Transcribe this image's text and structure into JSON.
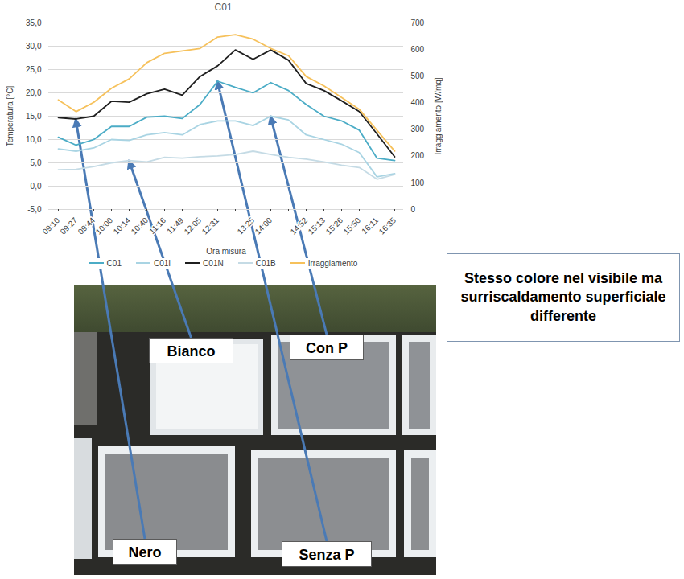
{
  "chart_data": {
    "type": "line",
    "title": "C01",
    "xlabel": "Ora misura",
    "ylabel": "Temperatura [°C]",
    "y2label": "Irraggiamento [W/mq]",
    "categories": [
      "09:10",
      "09:27",
      "09:44",
      "10:00",
      "10:14",
      "10:40",
      "11:16",
      "11:49",
      "12:05",
      "12:31",
      null,
      "13:25",
      "14:00",
      null,
      "14:52",
      "15:13",
      "15:26",
      "15:50",
      "16:11",
      "16:35"
    ],
    "series": [
      {
        "name": "C01",
        "color": "#4bacc6",
        "values": [
          10.5,
          8.8,
          10.0,
          12.8,
          12.8,
          14.8,
          15.0,
          14.5,
          17.5,
          22.5,
          21.2,
          20.0,
          22.2,
          20.5,
          17.5,
          15.0,
          14.0,
          12.0,
          6.0,
          5.5
        ]
      },
      {
        "name": "C01I",
        "color": "#a9d4e3",
        "values": [
          8.0,
          7.5,
          8.2,
          10.0,
          9.8,
          11.0,
          11.5,
          11.0,
          13.2,
          14.0,
          14.0,
          13.0,
          15.0,
          14.2,
          11.0,
          10.0,
          9.0,
          7.2,
          2.0,
          2.7
        ]
      },
      {
        "name": "C01N",
        "color": "#1f1f1f",
        "values": [
          14.7,
          14.4,
          15.0,
          18.2,
          18.0,
          19.8,
          20.8,
          19.5,
          23.5,
          25.8,
          29.2,
          27.2,
          29.2,
          27.0,
          22.0,
          20.5,
          18.3,
          16.0,
          11.2,
          6.3
        ]
      },
      {
        "name": "C01B",
        "color": "#c5dbe5",
        "values": [
          3.5,
          3.6,
          4.2,
          5.0,
          5.5,
          5.2,
          6.2,
          6.0,
          6.3,
          6.5,
          6.8,
          7.5,
          6.8,
          6.2,
          5.8,
          5.2,
          4.5,
          4.0,
          1.5,
          2.5
        ]
      },
      {
        "name": "Irraggiamento",
        "color": "#f6c15b",
        "axis": "y2",
        "values": [
          411,
          367,
          402,
          455,
          490,
          551,
          586,
          595,
          604,
          647,
          656,
          639,
          604,
          577,
          499,
          464,
          420,
          376,
          297,
          219
        ]
      }
    ],
    "ylim": [
      -5,
      35
    ],
    "yticks": [
      {
        "value": -5,
        "label": "-5,0"
      },
      {
        "value": 0,
        "label": "0,0"
      },
      {
        "value": 5,
        "label": "5,0"
      },
      {
        "value": 10,
        "label": "10,0"
      },
      {
        "value": 15,
        "label": "15,0"
      },
      {
        "value": 20,
        "label": "20,0"
      },
      {
        "value": 25,
        "label": "25,0"
      },
      {
        "value": 30,
        "label": "30,0"
      },
      {
        "value": 35,
        "label": "35,0"
      }
    ],
    "y2lim": [
      0,
      700
    ],
    "y2ticks": [
      0,
      100,
      200,
      300,
      400,
      500,
      600,
      700
    ],
    "grid": true,
    "legend": "bottom",
    "annotations": [
      {
        "text": "Bianco",
        "series": "C01B"
      },
      {
        "text": "Con P",
        "series": "C01I"
      },
      {
        "text": "Nero",
        "series": "C01N"
      },
      {
        "text": "Senza P",
        "series": "C01"
      },
      {
        "text": "Stesso colore nel visibile ma surriscaldamento superficiale differente"
      }
    ]
  }
}
